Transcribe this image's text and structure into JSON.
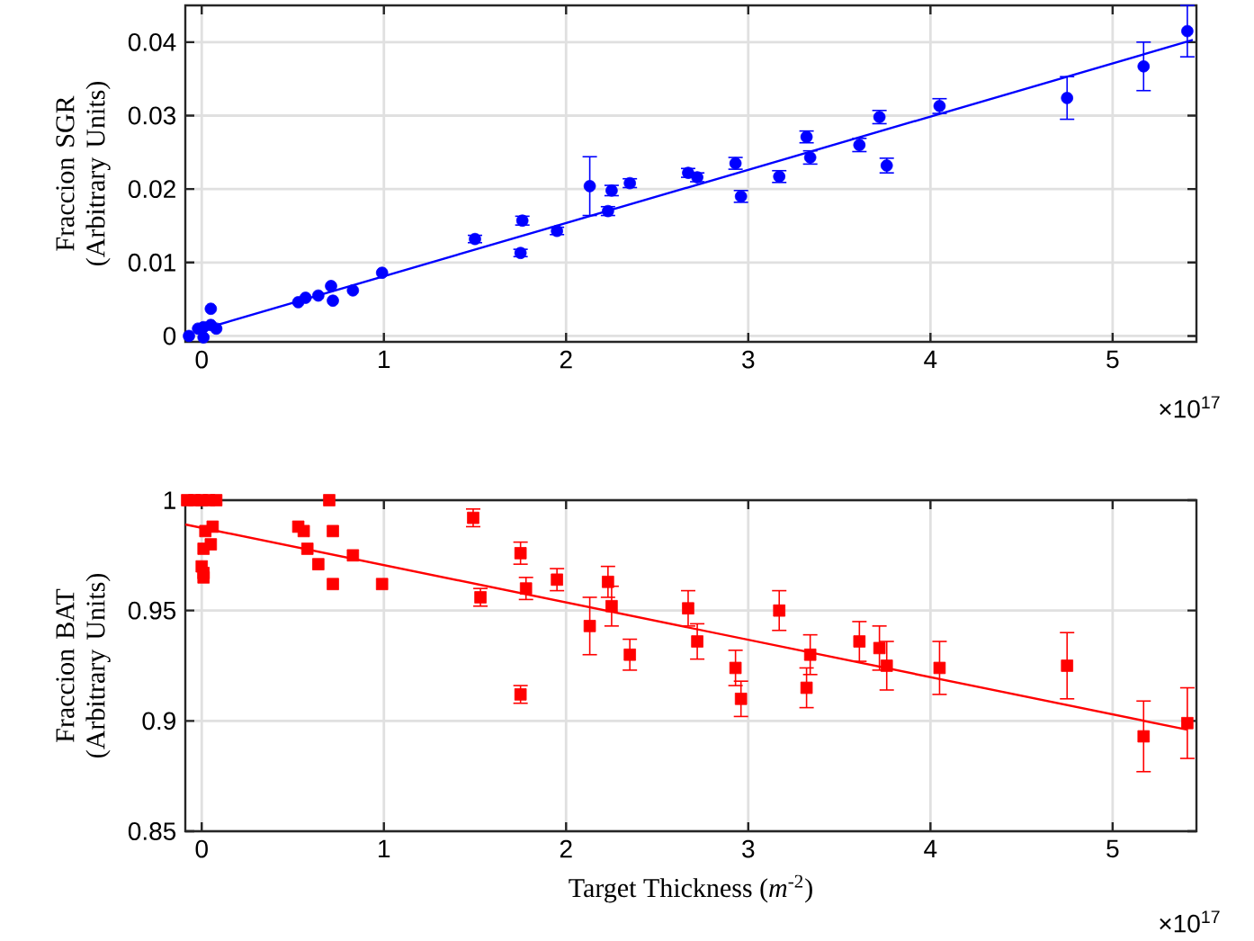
{
  "chart_data": [
    {
      "type": "scatter",
      "ylabel": "Fraccion SGR (Arbitrary Units)",
      "annotations": [
        "×10$^{17}$"
      ],
      "xlim": [
        -0.09,
        5.46
      ],
      "ylim": [
        -0.0008,
        0.045
      ],
      "xticks": [
        0,
        1,
        2,
        3,
        4,
        5
      ],
      "yticks": [
        0,
        0.01,
        0.02,
        0.03,
        0.04
      ],
      "grid": true,
      "series": [
        {
          "marker": "circle",
          "color": "#0000ff",
          "x": [
            -0.07,
            -0.02,
            0.01,
            0.01,
            0.05,
            0.05,
            0.08,
            0.53,
            0.57,
            0.64,
            0.71,
            0.72,
            0.83,
            0.99,
            1.5,
            1.75,
            1.76,
            1.95,
            2.13,
            2.23,
            2.25,
            2.35,
            2.67,
            2.72,
            2.93,
            2.96,
            3.17,
            3.32,
            3.34,
            3.61,
            3.72,
            3.76,
            4.05,
            4.75,
            5.17,
            5.41
          ],
          "values": [
            0.0,
            0.001,
            -0.0002,
            0.0012,
            0.0015,
            0.0037,
            0.001,
            0.0046,
            0.0052,
            0.0055,
            0.0068,
            0.0048,
            0.0062,
            0.0086,
            0.0132,
            0.0113,
            0.0157,
            0.0143,
            0.0204,
            0.017,
            0.0198,
            0.0208,
            0.0222,
            0.0216,
            0.0235,
            0.019,
            0.0217,
            0.0271,
            0.0243,
            0.026,
            0.0298,
            0.0232,
            0.0313,
            0.0324,
            0.0367,
            0.0415
          ],
          "errors": [
            null,
            null,
            null,
            null,
            null,
            null,
            null,
            null,
            null,
            null,
            null,
            null,
            null,
            null,
            0.0005,
            0.0005,
            0.0006,
            0.0005,
            0.004,
            0.0006,
            0.0007,
            0.0006,
            0.0006,
            0.0006,
            0.0008,
            0.0008,
            0.0008,
            0.0008,
            0.0009,
            0.0009,
            0.0009,
            0.001,
            0.001,
            0.0029,
            0.0033,
            0.0035
          ]
        },
        {
          "type": "line",
          "marker": "none",
          "color": "#0000ff",
          "x": [
            0.03,
            5.44
          ],
          "values": [
            0.0011,
            0.0403
          ]
        }
      ]
    },
    {
      "type": "scatter",
      "xlabel": "Target Thickness (*m*$^{-2}$)",
      "ylabel": "Fraccion BAT (Arbitrary Units)",
      "annotations": [
        "×10$^{17}$"
      ],
      "xlim": [
        -0.09,
        5.46
      ],
      "ylim": [
        0.85,
        1.0
      ],
      "xticks": [
        0,
        1,
        2,
        3,
        4,
        5
      ],
      "yticks": [
        0.85,
        0.9,
        0.95,
        1
      ],
      "grid": true,
      "series": [
        {
          "marker": "square",
          "color": "#ff0000",
          "x": [
            -0.08,
            -0.04,
            0.0,
            0.04,
            0.08,
            0.02,
            0.01,
            0.06,
            0.05,
            0.0,
            0.01,
            0.01,
            0.53,
            0.56,
            0.58,
            0.64,
            0.7,
            0.72,
            0.72,
            0.83,
            0.99,
            1.49,
            1.53,
            1.75,
            1.75,
            1.78,
            1.95,
            2.13,
            2.23,
            2.25,
            2.35,
            2.67,
            2.72,
            2.93,
            2.96,
            3.17,
            3.32,
            3.34,
            3.61,
            3.72,
            3.76,
            4.05,
            4.75,
            5.17,
            5.41
          ],
          "values": [
            1.0,
            1.0,
            1.0,
            1.0,
            1.0,
            0.986,
            0.978,
            0.988,
            0.98,
            0.97,
            0.967,
            0.965,
            0.988,
            0.986,
            0.978,
            0.971,
            1.0,
            0.986,
            0.962,
            0.975,
            0.962,
            0.992,
            0.956,
            0.976,
            0.912,
            0.96,
            0.964,
            0.943,
            0.963,
            0.952,
            0.93,
            0.951,
            0.936,
            0.924,
            0.91,
            0.95,
            0.915,
            0.93,
            0.936,
            0.933,
            0.925,
            0.924,
            0.925,
            0.893,
            0.899
          ],
          "errors": [
            null,
            null,
            null,
            null,
            null,
            null,
            null,
            null,
            null,
            null,
            null,
            null,
            null,
            null,
            null,
            null,
            null,
            null,
            null,
            null,
            null,
            0.004,
            0.004,
            0.005,
            0.004,
            0.005,
            0.005,
            0.013,
            0.007,
            0.009,
            0.007,
            0.008,
            0.008,
            0.008,
            0.008,
            0.009,
            0.009,
            0.009,
            0.009,
            0.01,
            0.011,
            0.012,
            0.015,
            0.016,
            0.016
          ]
        },
        {
          "type": "line",
          "marker": "none",
          "color": "#ff0000",
          "x": [
            -0.09,
            5.41
          ],
          "values": [
            0.989,
            0.896
          ]
        }
      ]
    }
  ]
}
